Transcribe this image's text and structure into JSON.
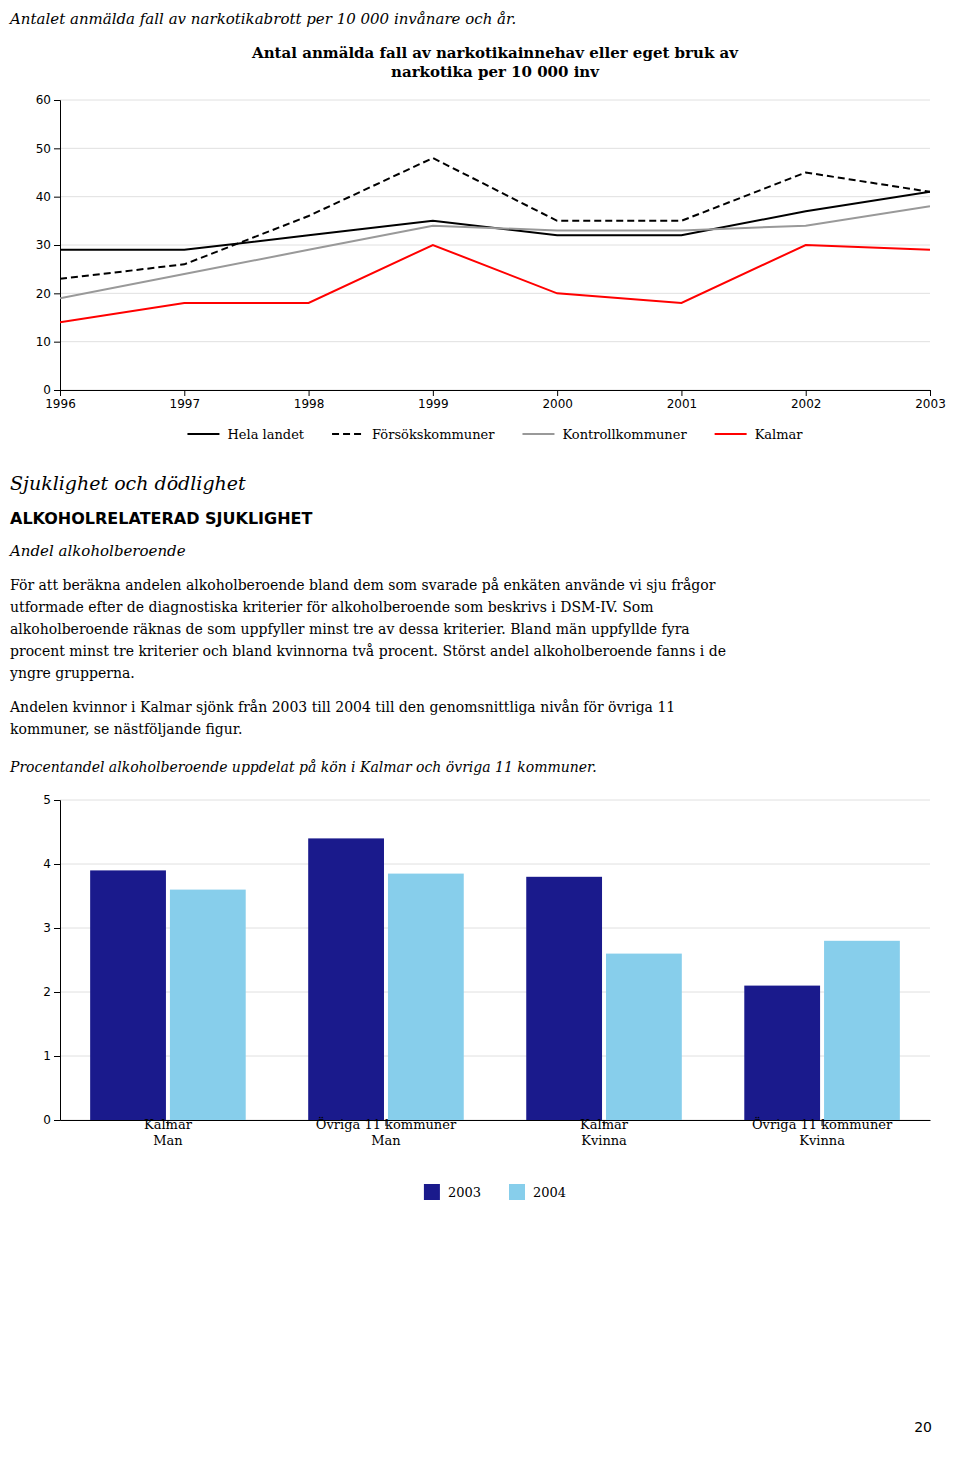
{
  "page_title": "Antalet anmälda fall av narkotikabrott per 10 000 invånare och år.",
  "chart_data": [
    {
      "type": "line",
      "title": "Antal anmälda fall av narkotikainnehav eller eget bruk av\nnarkotika per 10 000 inv",
      "x": [
        1996,
        1997,
        1998,
        1999,
        2000,
        2001,
        2002,
        2003
      ],
      "xlim": [
        1996,
        2003
      ],
      "xticks": [
        1996,
        1997,
        1998,
        1999,
        2000,
        2001,
        2002,
        2003
      ],
      "ylim": [
        0,
        60
      ],
      "yticks": [
        0,
        10,
        20,
        30,
        40,
        50,
        60
      ],
      "grid": true,
      "legend": "bottom",
      "series": [
        {
          "name": "Hela landet",
          "color": "#000000",
          "line_style": "solid",
          "values": [
            29,
            29,
            32,
            35,
            32,
            32,
            37,
            41
          ]
        },
        {
          "name": "Försökskommuner",
          "color": "#000000",
          "line_style": "dashed",
          "values": [
            23,
            26,
            36,
            48,
            35,
            35,
            45,
            41
          ]
        },
        {
          "name": "Kontrollkommuner",
          "color": "#999999",
          "line_style": "solid",
          "values": [
            19,
            24,
            29,
            34,
            33,
            33,
            34,
            38
          ]
        },
        {
          "name": "Kalmar",
          "color": "#ff0000",
          "line_style": "solid",
          "values": [
            14,
            18,
            18,
            30,
            20,
            18,
            30,
            29
          ]
        }
      ]
    },
    {
      "type": "bar",
      "categories": [
        "Kalmar\nMan",
        "Övriga 11 kommuner\nMan",
        "Kalmar\nKvinna",
        "Övriga 11 kommuner\nKvinna"
      ],
      "ylim": [
        0,
        5
      ],
      "yticks": [
        0,
        1,
        2,
        3,
        4,
        5
      ],
      "grid": true,
      "legend": "bottom",
      "series": [
        {
          "name": "2003",
          "color": "#1a1a8c",
          "values": [
            3.9,
            4.4,
            3.8,
            2.1
          ]
        },
        {
          "name": "2004",
          "color": "#87ceeb",
          "values": [
            3.6,
            3.85,
            2.6,
            2.8
          ]
        }
      ]
    }
  ],
  "text_blocks": {
    "heading1": "Sjuklighet och dödlighet",
    "heading2": "ALKOHOLRELATERAD SJUKLIGHET",
    "subheading": "Andel alkoholberoende",
    "paragraph1": [
      "För att beräkna andelen alkoholberoende bland dem som svarade på enkäten använde vi sju frågor",
      "utformade efter de diagnostiska kriterier för alkoholberoende som beskrivs i DSM-IV. Som",
      "alkoholberoende räknas de som uppfyller minst tre av dessa kriterier. Bland män uppfyllde fyra",
      "procent minst tre kriterier och bland kvinnorna två procent. Störst andel alkoholberoende fanns i de",
      "yngre grupperna."
    ],
    "paragraph2": [
      "Andelen kvinnor i Kalmar sjönk från 2003 till 2004 till den genomsnittliga nivån för övriga 11",
      "kommuner, se nästföljande figur."
    ],
    "bar_caption": "Procentandel alkoholberoende uppdelat på kön i Kalmar och övriga 11 kommuner."
  },
  "page_number": "20"
}
